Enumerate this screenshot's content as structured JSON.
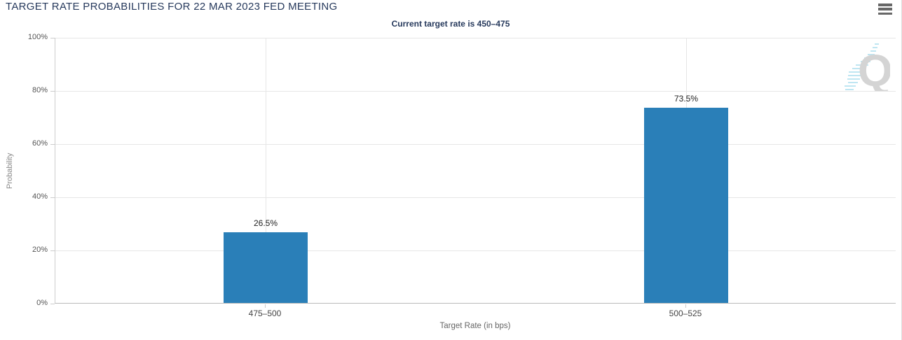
{
  "header": {
    "title": "TARGET RATE PROBABILITIES FOR 22 MAR 2023 FED MEETING"
  },
  "chart_data": {
    "type": "bar",
    "title": "TARGET RATE PROBABILITIES FOR 22 MAR 2023 FED MEETING",
    "subtitle": "Current target rate is 450–475",
    "categories": [
      "475–500",
      "500–525"
    ],
    "values": [
      26.5,
      73.5
    ],
    "data_labels": [
      "26.5%",
      "73.5%"
    ],
    "xlabel": "Target Rate (in bps)",
    "ylabel": "Probability",
    "ylim": [
      0,
      100
    ],
    "ytick_values": [
      0,
      20,
      40,
      60,
      80,
      100
    ],
    "ytick_labels": [
      "0%",
      "20%",
      "40%",
      "60%",
      "80%",
      "100%"
    ],
    "grid": true,
    "legend": false,
    "bar_color": "#2a7fb8"
  },
  "watermark": {
    "letter": "Q"
  },
  "colors": {
    "title_navy": "#26395c",
    "bar_blue": "#2a7fb8",
    "gridline": "#e6e6e6",
    "axis_line": "#cccccc",
    "tick_text": "#555555",
    "axis_title_text": "#666666",
    "menu_icon": "#676767",
    "watermark_gray": "#d4d4d4",
    "watermark_blue": "#bfe6f2"
  }
}
